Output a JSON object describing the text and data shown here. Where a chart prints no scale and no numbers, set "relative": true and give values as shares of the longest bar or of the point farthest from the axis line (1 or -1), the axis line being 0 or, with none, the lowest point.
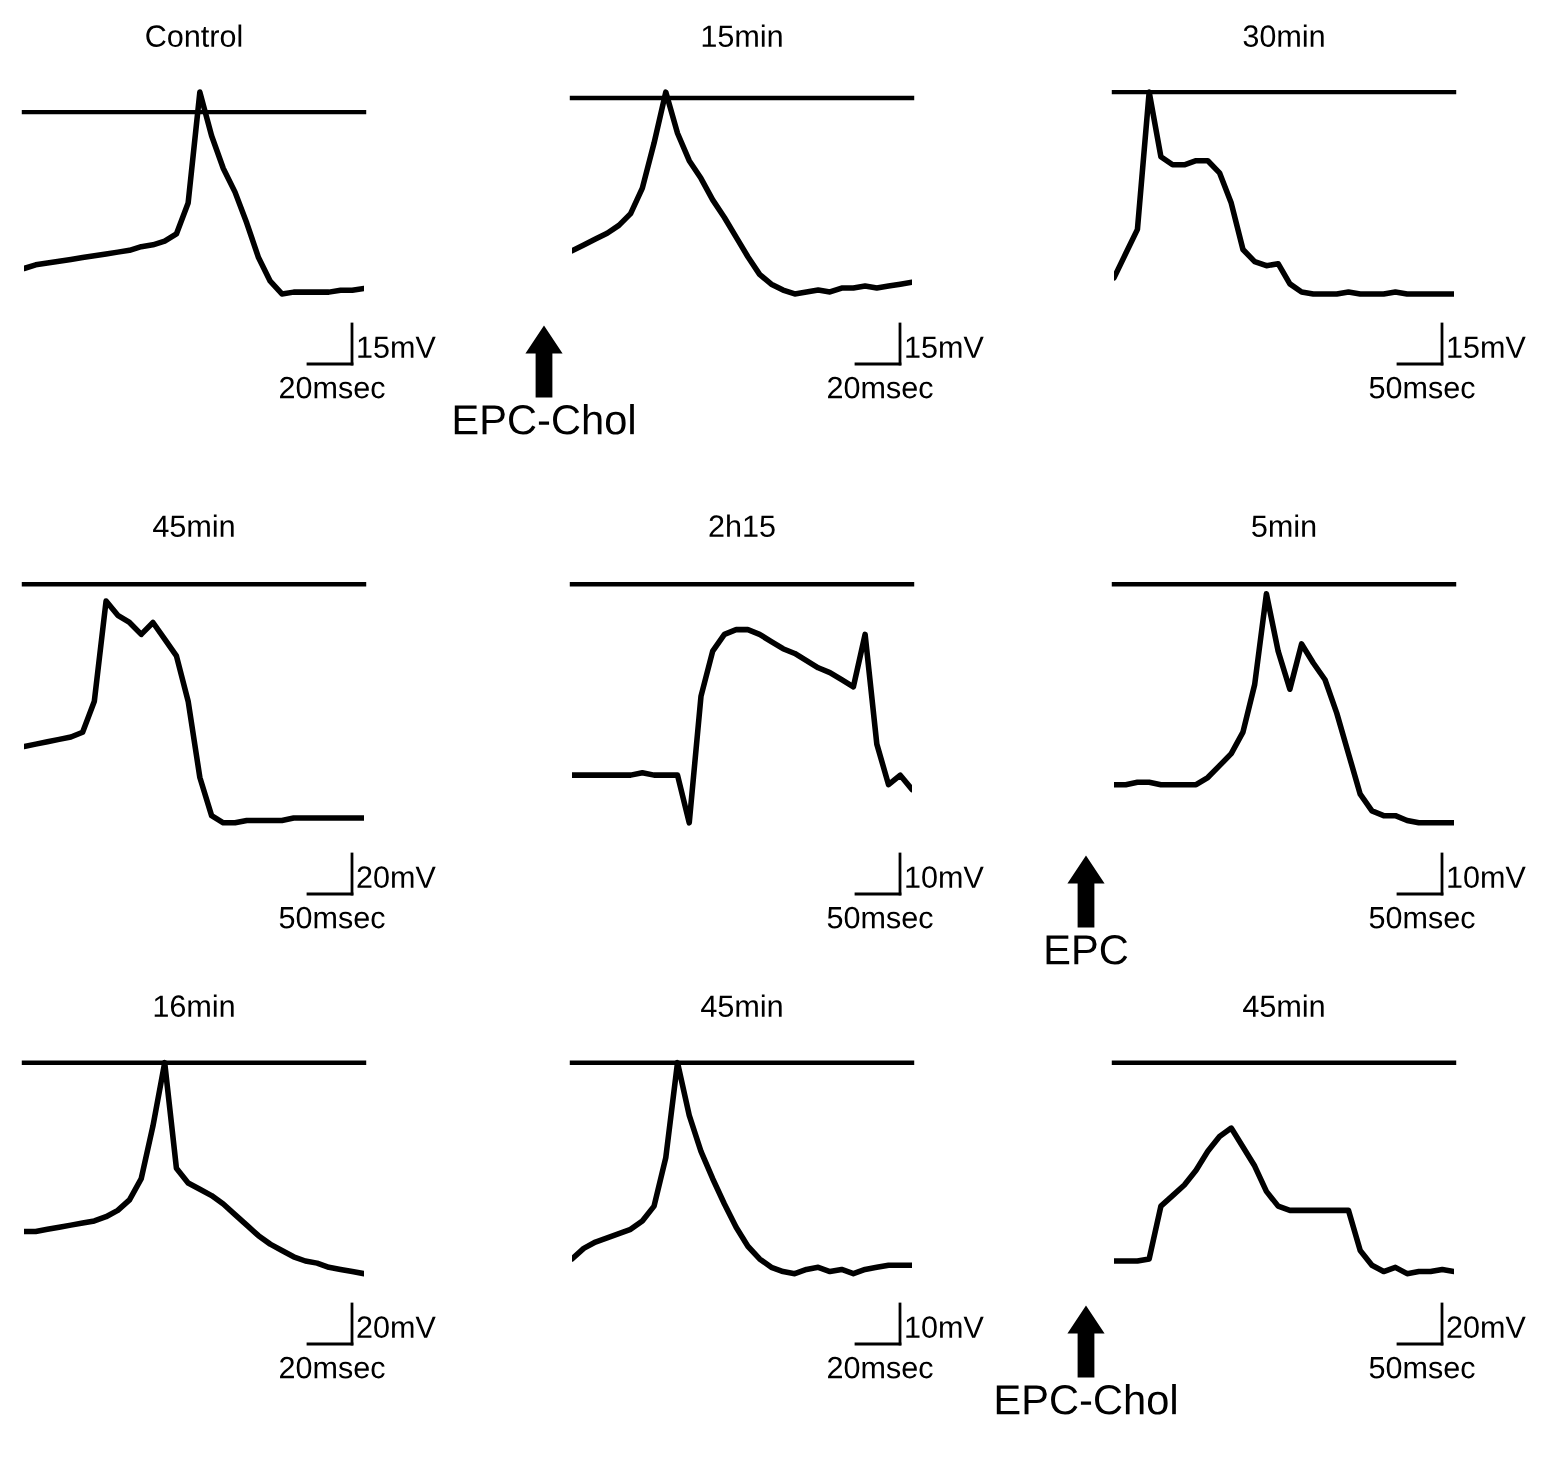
{
  "chart_data": [
    {
      "type": "line",
      "title": "Control",
      "relative": true,
      "categories": [
        null,
        null,
        null,
        null,
        null,
        null,
        null,
        null,
        null,
        null,
        null,
        null,
        null,
        null,
        null,
        null,
        null,
        null,
        null,
        null,
        null,
        null,
        null,
        null,
        null,
        null,
        null,
        null,
        null,
        null
      ],
      "series": [
        {
          "color": "#000000",
          "values": [
            -0.86,
            -0.84,
            -0.83,
            -0.82,
            -0.81,
            -0.8,
            -0.79,
            -0.78,
            -0.77,
            -0.76,
            -0.74,
            -0.73,
            -0.71,
            -0.67,
            -0.5,
            0.11,
            -0.13,
            -0.31,
            -0.44,
            -0.61,
            -0.8,
            -0.93,
            -1,
            -0.99,
            -0.99,
            -0.99,
            -0.99,
            -0.98,
            -0.98,
            -0.97
          ]
        }
      ],
      "annotations": [
        "15mV",
        "20msec"
      ]
    },
    {
      "type": "line",
      "title": "15min",
      "relative": true,
      "categories": [
        null,
        null,
        null,
        null,
        null,
        null,
        null,
        null,
        null,
        null,
        null,
        null,
        null,
        null,
        null,
        null,
        null,
        null,
        null,
        null,
        null,
        null,
        null,
        null,
        null,
        null,
        null,
        null,
        null,
        null
      ],
      "series": [
        {
          "color": "#000000",
          "values": [
            -0.78,
            -0.75,
            -0.72,
            -0.69,
            -0.65,
            -0.59,
            -0.46,
            -0.23,
            0.03,
            -0.18,
            -0.32,
            -0.41,
            -0.52,
            -0.61,
            -0.71,
            -0.81,
            -0.9,
            -0.95,
            -0.98,
            -1,
            -0.99,
            -0.98,
            -0.99,
            -0.97,
            -0.97,
            -0.96,
            -0.97,
            -0.96,
            -0.95,
            -0.94
          ]
        }
      ],
      "annotations": [
        "15mV",
        "20msec",
        "EPC-Chol"
      ]
    },
    {
      "type": "line",
      "title": "30min",
      "relative": true,
      "categories": [
        null,
        null,
        null,
        null,
        null,
        null,
        null,
        null,
        null,
        null,
        null,
        null,
        null,
        null,
        null,
        null,
        null,
        null,
        null,
        null,
        null,
        null,
        null,
        null,
        null,
        null,
        null,
        null,
        null,
        null
      ],
      "series": [
        {
          "color": "#000000",
          "values": [
            -0.92,
            -0.8,
            -0.68,
            0,
            -0.32,
            -0.36,
            -0.36,
            -0.34,
            -0.34,
            -0.4,
            -0.55,
            -0.78,
            -0.84,
            -0.86,
            -0.85,
            -0.95,
            -0.99,
            -1,
            -1,
            -1,
            -0.99,
            -1,
            -1,
            -1,
            -0.99,
            -1,
            -1,
            -1,
            -1,
            -1
          ]
        }
      ],
      "annotations": [
        "15mV",
        "50msec"
      ]
    },
    {
      "type": "line",
      "title": "45min",
      "relative": true,
      "categories": [
        null,
        null,
        null,
        null,
        null,
        null,
        null,
        null,
        null,
        null,
        null,
        null,
        null,
        null,
        null,
        null,
        null,
        null,
        null,
        null,
        null,
        null,
        null,
        null,
        null,
        null,
        null,
        null,
        null,
        null
      ],
      "series": [
        {
          "color": "#000000",
          "values": [
            -0.68,
            -0.67,
            -0.66,
            -0.65,
            -0.64,
            -0.62,
            -0.49,
            -0.07,
            -0.13,
            -0.16,
            -0.21,
            -0.16,
            -0.23,
            -0.3,
            -0.49,
            -0.81,
            -0.97,
            -1,
            -1,
            -0.99,
            -0.99,
            -0.99,
            -0.99,
            -0.98,
            -0.98,
            -0.98,
            -0.98,
            -0.98,
            -0.98,
            -0.98
          ]
        }
      ],
      "annotations": [
        "20mV",
        "50msec"
      ]
    },
    {
      "type": "line",
      "title": "2h15",
      "relative": true,
      "categories": [
        null,
        null,
        null,
        null,
        null,
        null,
        null,
        null,
        null,
        null,
        null,
        null,
        null,
        null,
        null,
        null,
        null,
        null,
        null,
        null,
        null,
        null,
        null,
        null,
        null,
        null,
        null,
        null,
        null,
        null
      ],
      "series": [
        {
          "color": "#000000",
          "values": [
            -0.8,
            -0.8,
            -0.8,
            -0.8,
            -0.8,
            -0.8,
            -0.79,
            -0.8,
            -0.8,
            -0.8,
            -1,
            -0.47,
            -0.28,
            -0.21,
            -0.19,
            -0.19,
            -0.21,
            -0.24,
            -0.27,
            -0.29,
            -0.32,
            -0.35,
            -0.37,
            -0.4,
            -0.43,
            -0.21,
            -0.67,
            -0.84,
            -0.8,
            -0.86
          ]
        }
      ],
      "annotations": [
        "10mV",
        "50msec"
      ]
    },
    {
      "type": "line",
      "title": "5min",
      "relative": true,
      "categories": [
        null,
        null,
        null,
        null,
        null,
        null,
        null,
        null,
        null,
        null,
        null,
        null,
        null,
        null,
        null,
        null,
        null,
        null,
        null,
        null,
        null,
        null,
        null,
        null,
        null,
        null,
        null,
        null,
        null,
        null
      ],
      "series": [
        {
          "color": "#000000",
          "values": [
            -0.84,
            -0.84,
            -0.83,
            -0.83,
            -0.84,
            -0.84,
            -0.84,
            -0.84,
            -0.81,
            -0.76,
            -0.71,
            -0.62,
            -0.42,
            -0.04,
            -0.28,
            -0.44,
            -0.25,
            -0.33,
            -0.4,
            -0.54,
            -0.71,
            -0.88,
            -0.95,
            -0.97,
            -0.97,
            -0.99,
            -1,
            -1,
            -1,
            -1
          ]
        }
      ],
      "annotations": [
        "10mV",
        "50msec",
        "EPC"
      ]
    },
    {
      "type": "line",
      "title": "16min",
      "relative": true,
      "categories": [
        null,
        null,
        null,
        null,
        null,
        null,
        null,
        null,
        null,
        null,
        null,
        null,
        null,
        null,
        null,
        null,
        null,
        null,
        null,
        null,
        null,
        null,
        null,
        null,
        null,
        null,
        null,
        null,
        null,
        null
      ],
      "series": [
        {
          "color": "#000000",
          "values": [
            -0.8,
            -0.8,
            -0.79,
            -0.78,
            -0.77,
            -0.76,
            -0.75,
            -0.73,
            -0.7,
            -0.65,
            -0.55,
            -0.3,
            0,
            -0.5,
            -0.57,
            -0.6,
            -0.63,
            -0.67,
            -0.72,
            -0.77,
            -0.82,
            -0.86,
            -0.89,
            -0.92,
            -0.94,
            -0.95,
            -0.97,
            -0.98,
            -0.99,
            -1
          ]
        }
      ],
      "annotations": [
        "20mV",
        "20msec"
      ]
    },
    {
      "type": "line",
      "title": "45min",
      "relative": true,
      "categories": [
        null,
        null,
        null,
        null,
        null,
        null,
        null,
        null,
        null,
        null,
        null,
        null,
        null,
        null,
        null,
        null,
        null,
        null,
        null,
        null,
        null,
        null,
        null,
        null,
        null,
        null,
        null,
        null,
        null,
        null
      ],
      "series": [
        {
          "color": "#000000",
          "values": [
            -0.93,
            -0.88,
            -0.85,
            -0.83,
            -0.81,
            -0.79,
            -0.75,
            -0.68,
            -0.45,
            0,
            -0.25,
            -0.42,
            -0.55,
            -0.67,
            -0.78,
            -0.87,
            -0.93,
            -0.97,
            -0.99,
            -1,
            -0.98,
            -0.97,
            -0.99,
            -0.98,
            -1,
            -0.98,
            -0.97,
            -0.96,
            -0.96,
            -0.96
          ]
        }
      ],
      "annotations": [
        "10mV",
        "20msec"
      ]
    },
    {
      "type": "line",
      "title": "45min",
      "relative": true,
      "categories": [
        null,
        null,
        null,
        null,
        null,
        null,
        null,
        null,
        null,
        null,
        null,
        null,
        null,
        null,
        null,
        null,
        null,
        null,
        null,
        null,
        null,
        null,
        null,
        null,
        null,
        null,
        null,
        null,
        null,
        null
      ],
      "series": [
        {
          "color": "#000000",
          "values": [
            -0.94,
            -0.94,
            -0.94,
            -0.93,
            -0.68,
            -0.63,
            -0.58,
            -0.51,
            -0.42,
            -0.35,
            -0.31,
            -0.4,
            -0.49,
            -0.61,
            -0.68,
            -0.7,
            -0.7,
            -0.7,
            -0.7,
            -0.7,
            -0.7,
            -0.89,
            -0.96,
            -0.99,
            -0.97,
            -1,
            -0.99,
            -0.99,
            -0.98,
            -0.99
          ]
        }
      ],
      "annotations": [
        "20mV",
        "50msec",
        "EPC-Chol"
      ]
    }
  ]
}
